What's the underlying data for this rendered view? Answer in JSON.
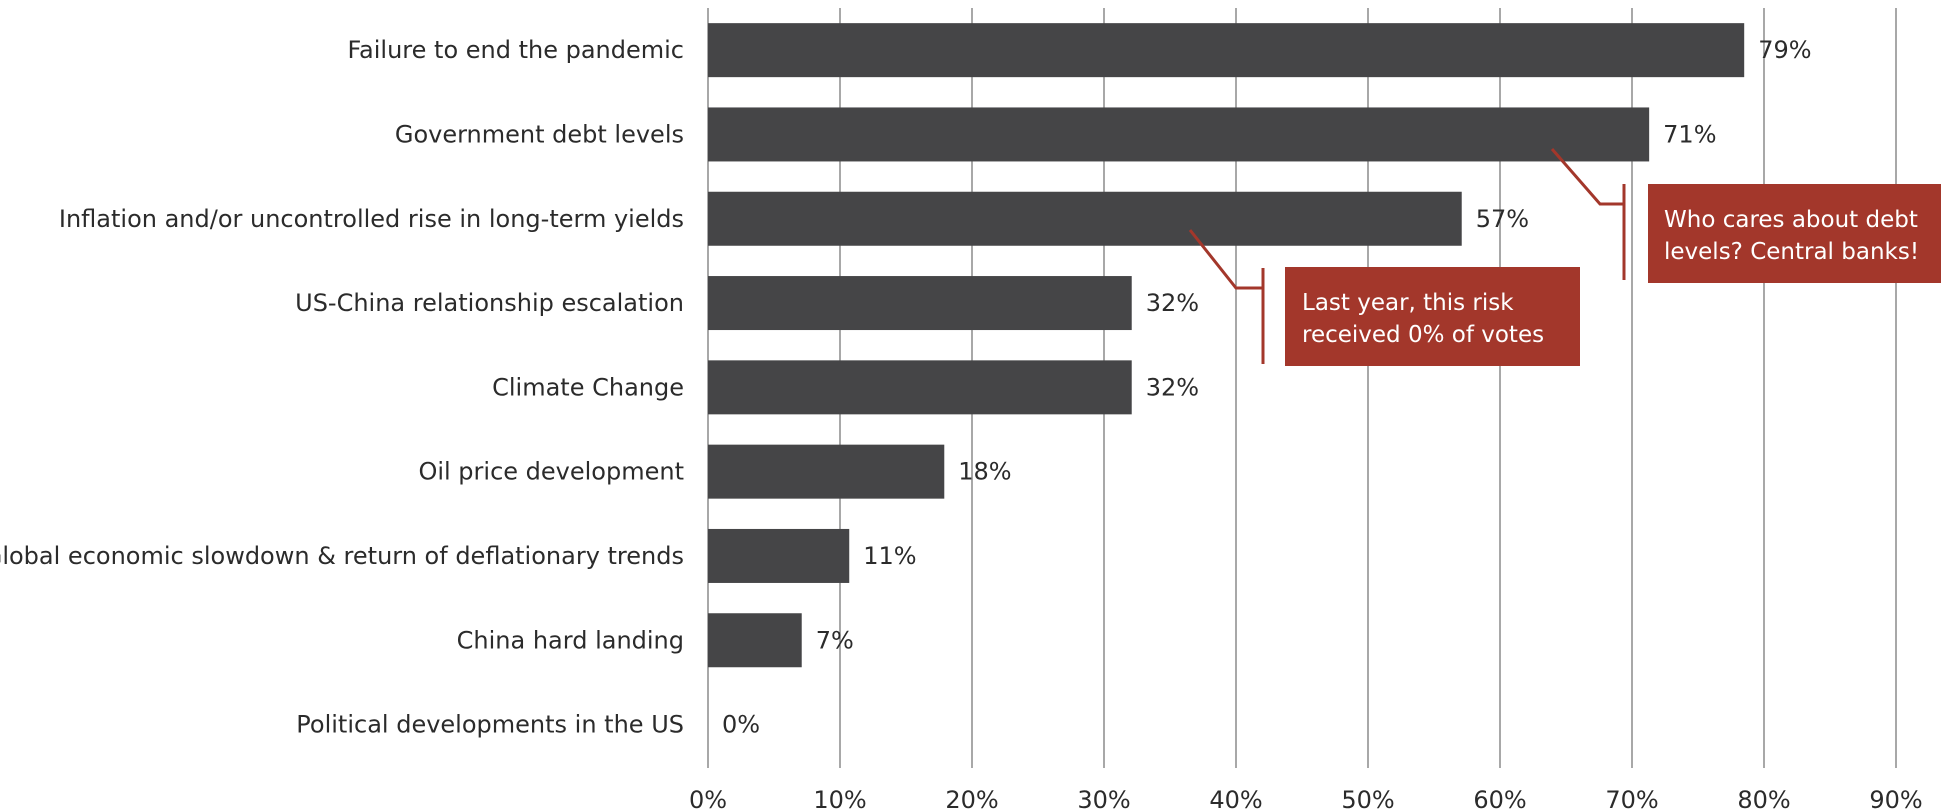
{
  "chart_data": {
    "type": "bar",
    "orientation": "horizontal",
    "categories": [
      "Failure to end the pandemic",
      "Government debt levels",
      "Inflation and/or uncontrolled rise in long-term yields",
      "US-China relationship escalation",
      "Climate Change",
      "Oil price development",
      "Global economic slowdown & return of deflationary trends",
      "China hard landing",
      "Political developments in the US"
    ],
    "values": [
      78.5,
      71.3,
      57.1,
      32.1,
      32.1,
      17.9,
      10.7,
      7.1,
      0
    ],
    "value_labels": [
      "79%",
      "71%",
      "57%",
      "32%",
      "32%",
      "18%",
      "11%",
      "7%",
      "0%"
    ],
    "xlim": [
      0,
      90
    ],
    "xticks": [
      0,
      10,
      20,
      30,
      40,
      50,
      60,
      70,
      80,
      90
    ],
    "xtick_labels": [
      "0%",
      "10%",
      "20%",
      "30%",
      "40%",
      "50%",
      "60%",
      "70%",
      "80%",
      "90%"
    ],
    "grid": "vertical",
    "bar_color": "#454547",
    "annotations": [
      {
        "text": [
          "Last year, this risk",
          "received 0% of votes"
        ],
        "points_to": "US-China relationship escalation",
        "color": "#a3372b"
      },
      {
        "text": [
          "Who cares about debt",
          "levels? Central banks!"
        ],
        "points_to": "Government debt levels",
        "color": "#a3372b"
      }
    ]
  }
}
